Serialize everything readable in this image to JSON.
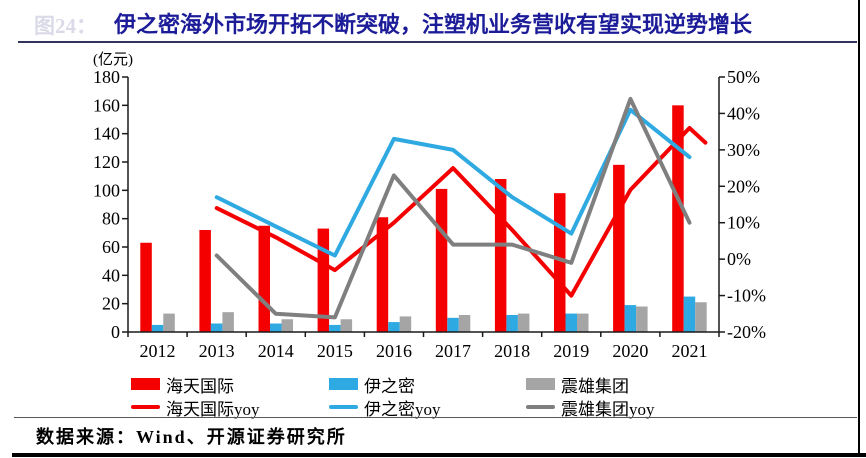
{
  "figure_label": "图24：",
  "title": "伊之密海外市场开拓不断突破，注塑机业务营收有望实现逆势增长",
  "source_note": "数据来源：Wind、开源证券研究所",
  "colors": {
    "red": "#f40000",
    "blue": "#2fa9e1",
    "gray_bar": "#a5a5a5",
    "gray_line": "#7f7f7f",
    "axis": "#000000",
    "title_navy": "#1c1c99"
  },
  "chart_data": {
    "type": "combo-bar-line",
    "categories": [
      "2012",
      "2013",
      "2014",
      "2015",
      "2016",
      "2017",
      "2018",
      "2019",
      "2020",
      "2021"
    ],
    "bar_series": [
      {
        "name": "海天国际",
        "color_key": "red",
        "axis": "left",
        "values": [
          63,
          72,
          75,
          73,
          81,
          101,
          108,
          98,
          118,
          160
        ]
      },
      {
        "name": "伊之密",
        "color_key": "blue",
        "axis": "left",
        "values": [
          5,
          6,
          6,
          5,
          7,
          10,
          12,
          13,
          19,
          25
        ]
      },
      {
        "name": "震雄集团",
        "color_key": "gray_bar",
        "axis": "left",
        "values": [
          13,
          14,
          9,
          9,
          11,
          12,
          13,
          13,
          18,
          21
        ]
      }
    ],
    "line_series": [
      {
        "name": "海天国际yoy",
        "color_key": "red",
        "axis": "right",
        "values": [
          null,
          14,
          6,
          -3,
          10,
          25,
          8,
          -10,
          19,
          36
        ],
        "tail": {
          "dx": 0.27,
          "value": 32
        }
      },
      {
        "name": "伊之密yoy",
        "color_key": "blue",
        "axis": "right",
        "values": [
          null,
          17,
          9,
          1,
          33,
          30,
          17,
          7,
          41,
          28
        ]
      },
      {
        "name": "震雄集团yoy",
        "color_key": "gray_line",
        "axis": "right",
        "values": [
          null,
          1,
          -15,
          -16,
          23,
          4,
          4,
          -1,
          44,
          10
        ]
      }
    ],
    "left_axis": {
      "label": "(亿元)",
      "min": 0,
      "max": 180,
      "step": 20,
      "tick_labels": [
        "0",
        "20",
        "40",
        "60",
        "80",
        "100",
        "120",
        "140",
        "160",
        "180"
      ]
    },
    "right_axis": {
      "min": -20,
      "max": 50,
      "step": 10,
      "tick_labels": [
        "-20%",
        "-10%",
        "0%",
        "10%",
        "20%",
        "30%",
        "40%",
        "50%"
      ]
    },
    "legend_position": "bottom",
    "grid": false
  }
}
